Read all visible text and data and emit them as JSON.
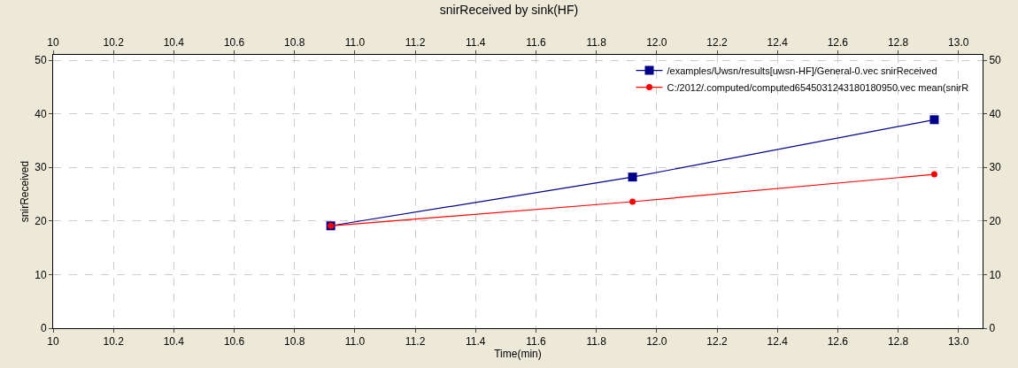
{
  "chart_data": {
    "type": "line",
    "title": "snirReceived by sink(HF)",
    "xlabel": "Time(min)",
    "ylabel": "snirReceived",
    "x": [
      10.92,
      11.92,
      12.92
    ],
    "series": [
      {
        "name": "/examples/Uwsn/results[uwsn-HF]/General-0.vec snirReceived",
        "color": "#00008b",
        "marker": "square",
        "values": [
          19.1,
          28.2,
          38.9
        ]
      },
      {
        "name": "C:/2012/.computed/computed6545031243180180950.vec mean(snirR",
        "color": "#ff0000",
        "marker": "circle",
        "values": [
          19.1,
          23.6,
          28.7
        ]
      }
    ],
    "xlim": [
      10,
      13.08
    ],
    "xticks": [
      10,
      10.2,
      10.4,
      10.6,
      10.8,
      {
        "value": 11,
        "label": "11.0"
      },
      11.2,
      11.4,
      11.6,
      11.8,
      {
        "value": 12,
        "label": "12.0"
      },
      12.2,
      12.4,
      12.6,
      12.8,
      {
        "value": 13,
        "label": "13.0"
      }
    ],
    "x2lim": [
      10,
      13.08
    ],
    "x2ticks": [
      10,
      10.2,
      10.4,
      10.6,
      10.8,
      {
        "value": 11,
        "label": "11.0"
      },
      11.2,
      11.4,
      11.6,
      11.8,
      {
        "value": 12,
        "label": "12.0"
      },
      12.2,
      12.4,
      12.6,
      12.8,
      {
        "value": 13,
        "label": "13.0"
      }
    ],
    "ylim": [
      0,
      51
    ],
    "yticks": [
      0,
      10,
      20,
      30,
      40,
      50
    ],
    "y2lim": [
      0,
      51
    ],
    "y2ticks": [
      0,
      10,
      20,
      30,
      40,
      50
    ],
    "grid": true,
    "legend": "top right",
    "line_style": "solid"
  }
}
